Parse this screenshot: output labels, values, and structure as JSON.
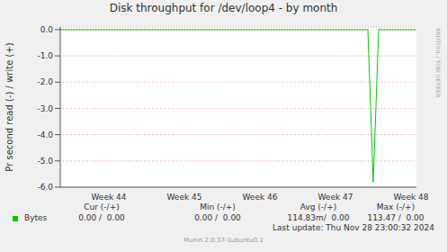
{
  "chart_data": {
    "type": "line",
    "title": "Disk throughput for /dev/loop4 - by month",
    "y_label": "Pr second read (-) / write (+)",
    "categories": [
      null,
      null,
      null,
      null,
      null,
      null,
      null,
      null,
      null,
      "Week 44",
      null,
      null,
      null,
      null,
      null,
      null,
      null,
      null,
      null,
      null,
      null,
      null,
      null,
      "Week 45",
      null,
      null,
      null,
      null,
      null,
      null,
      null,
      null,
      null,
      null,
      null,
      null,
      null,
      "Week 46",
      null,
      null,
      null,
      null,
      null,
      null,
      null,
      null,
      null,
      null,
      null,
      null,
      null,
      "Week 47",
      null,
      null,
      null,
      null,
      null,
      null,
      null,
      null,
      null,
      null,
      null,
      null,
      null,
      "Week 48",
      null
    ],
    "series": [
      {
        "name": "Bytes",
        "color": "#00cc00",
        "values": [
          0,
          0,
          0,
          0,
          0,
          0,
          0,
          0,
          0,
          0,
          0,
          0,
          0,
          0,
          0,
          0,
          0,
          0,
          0,
          0,
          0,
          0,
          0,
          0,
          0,
          0,
          0,
          0,
          0,
          0,
          0,
          0,
          0,
          0,
          0,
          0,
          0,
          0,
          0,
          0,
          0,
          0,
          0,
          0,
          0,
          0,
          0,
          0,
          0,
          0,
          0,
          0,
          0,
          0,
          0,
          0,
          0,
          0,
          -5.8,
          0,
          0,
          0,
          0,
          0,
          0,
          0,
          0
        ]
      }
    ],
    "ylim": [
      -6,
      0.1
    ],
    "yticks": [
      {
        "value": 0,
        "label": "0.0"
      },
      {
        "value": -1,
        "label": "-1.0"
      },
      {
        "value": -2,
        "label": "-2.0"
      },
      {
        "value": -3,
        "label": "-3.0"
      },
      {
        "value": -4,
        "label": "-4.0"
      },
      {
        "value": -5,
        "label": "-5.0"
      },
      {
        "value": -6,
        "label": "-6.0"
      }
    ],
    "grid": true,
    "stats": {
      "headers": [
        "Cur (-/+)",
        "Min (-/+)",
        "Avg (-/+)",
        "Max (-/+)"
      ],
      "cells": [
        "0.00 /  0.00",
        "0.00 /  0.00",
        "114.83m/  0.00",
        "113.47 /  0.00"
      ]
    },
    "last_update": "Last update: Thu Nov 28 23:00:32 2024",
    "footer": "Munin 2.0.37-1ubuntu0.1",
    "side_text": "RRDTOOL / TOBI OETIKER"
  }
}
